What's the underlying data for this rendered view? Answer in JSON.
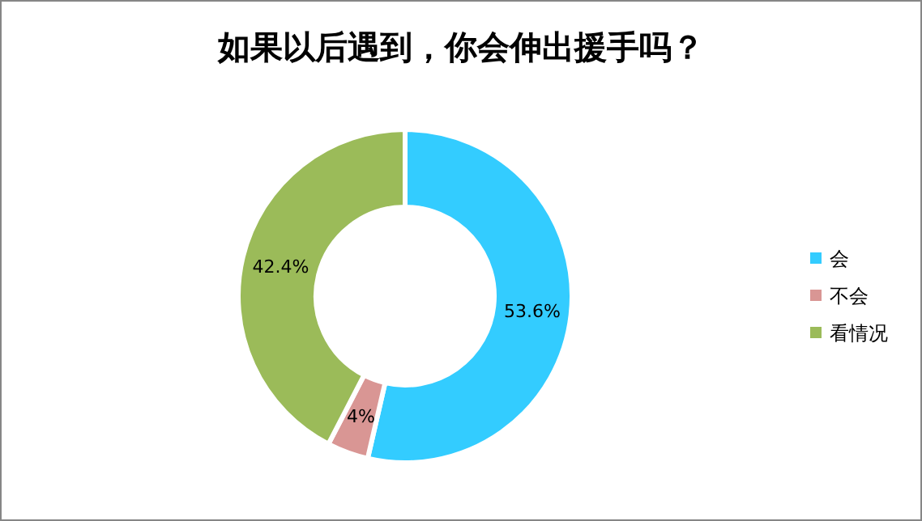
{
  "chart_data": {
    "type": "donut",
    "title": "如果以后遇到，你会伸出援手吗？",
    "categories": [
      "会",
      "不会",
      "看情况"
    ],
    "values": [
      53.6,
      4,
      42.4
    ],
    "colors": [
      "#33ccff",
      "#d99694",
      "#9bbb59"
    ],
    "value_labels": [
      "53.6%",
      "4%",
      "42.4%"
    ],
    "legend": "right"
  }
}
